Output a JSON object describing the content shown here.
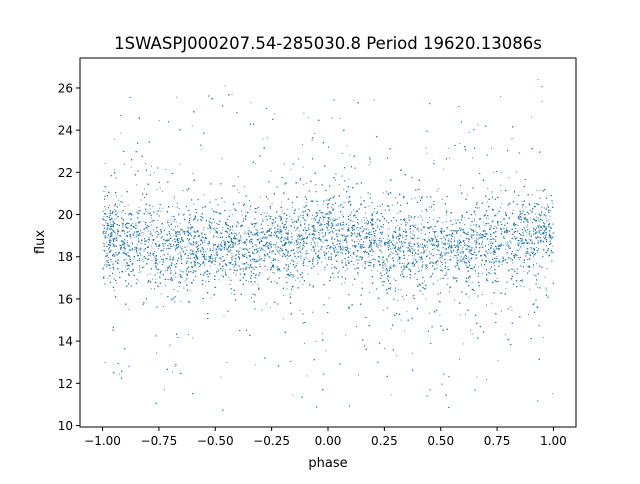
{
  "chart_data": {
    "type": "scatter",
    "title": "1SWASPJ000207.54-285030.8 Period 19620.13086s",
    "xlabel": "phase",
    "ylabel": "flux",
    "xlim": [
      -1.1,
      1.1
    ],
    "ylim": [
      9.93,
      27.42
    ],
    "xticks": [
      -1.0,
      -0.75,
      -0.5,
      -0.25,
      0.0,
      0.25,
      0.5,
      0.75,
      1.0
    ],
    "xtick_labels": [
      "−1.00",
      "−0.75",
      "−0.50",
      "−0.25",
      "0.00",
      "0.25",
      "0.50",
      "0.75",
      "1.00"
    ],
    "yticks": [
      10,
      12,
      14,
      16,
      18,
      20,
      22,
      24,
      26
    ],
    "ytick_labels": [
      "10",
      "12",
      "14",
      "16",
      "18",
      "20",
      "22",
      "24",
      "26"
    ],
    "grid": false,
    "marker_color": "#1f77b4",
    "x_data_range": [
      -1.0,
      1.0
    ],
    "y_data_range": [
      10.7,
      26.6
    ],
    "binned_mean": {
      "phase": [
        -1.0,
        -0.75,
        -0.5,
        -0.25,
        0.0,
        0.25,
        0.5,
        0.75,
        1.0
      ],
      "flux": [
        19.0,
        18.6,
        18.3,
        18.7,
        19.0,
        18.6,
        18.3,
        18.7,
        19.0
      ]
    }
  }
}
